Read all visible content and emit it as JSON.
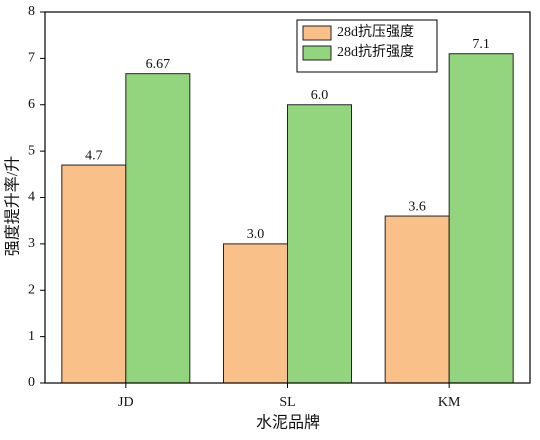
{
  "chart_data": {
    "type": "bar",
    "categories": [
      "JD",
      "SL",
      "KM"
    ],
    "series": [
      {
        "name": "28d抗压强度",
        "color": "#f9c089",
        "values": [
          4.7,
          3.0,
          3.6
        ],
        "value_labels": [
          "4.7",
          "3.0",
          "3.6"
        ]
      },
      {
        "name": "28d抗折强度",
        "color": "#93d47f",
        "values": [
          6.67,
          6.0,
          7.1
        ],
        "value_labels": [
          "6.67",
          "6.0",
          "7.1"
        ]
      }
    ],
    "x_label": "水泥品牌",
    "y_label": "强度提升率/升",
    "ylim": [
      0,
      8
    ],
    "yticks": [
      0,
      1,
      2,
      3,
      4,
      5,
      6,
      7,
      8
    ],
    "grid": false,
    "legend": "upper right"
  }
}
